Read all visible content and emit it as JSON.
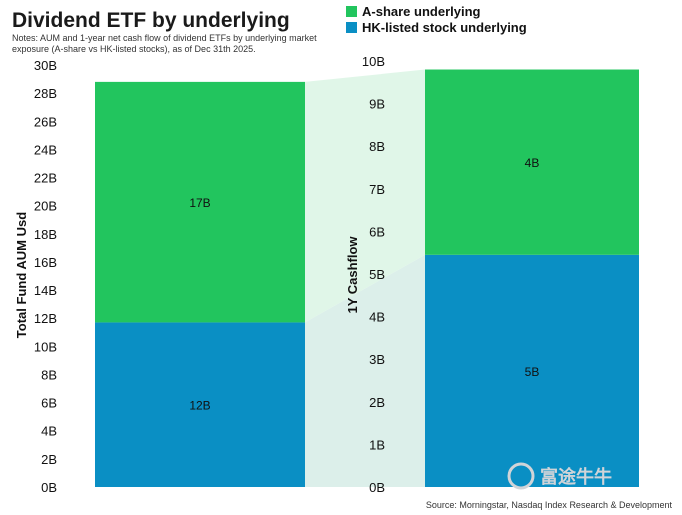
{
  "header": {
    "title": "Dividend ETF by underlying",
    "notes_line1": "Notes: AUM and 1-year net cash flow of dividend ETFs by underlying market",
    "notes_line2": "exposure (A-share vs HK-listed stocks), as of Dec 31th 2025."
  },
  "legend": [
    {
      "label": "A-share underlying",
      "color": "#22c55e"
    },
    {
      "label": "HK-listed stock underlying",
      "color": "#0a8fc4"
    }
  ],
  "source": "Source: Morningstar, Nasdaq Index Research & Development",
  "watermark": "富途牛牛",
  "chart_data": [
    {
      "type": "bar",
      "stacked": true,
      "ylabel": "Total Fund AUM Usd",
      "ylim": [
        0,
        30
      ],
      "yticks": [
        "0B",
        "2B",
        "4B",
        "6B",
        "8B",
        "10B",
        "12B",
        "14B",
        "16B",
        "18B",
        "20B",
        "22B",
        "24B",
        "26B",
        "28B",
        "30B"
      ],
      "series": [
        {
          "name": "HK-listed stock underlying",
          "values": [
            11.7
          ],
          "label": "12B",
          "color": "#0a8fc4"
        },
        {
          "name": "A-share underlying",
          "values": [
            17.1
          ],
          "label": "17B",
          "color": "#22c55e"
        }
      ]
    },
    {
      "type": "bar",
      "stacked": true,
      "ylabel": "1Y Cashflow",
      "ylim": [
        0,
        10
      ],
      "yticks": [
        "0B",
        "1B",
        "2B",
        "3B",
        "4B",
        "5B",
        "6B",
        "7B",
        "8B",
        "9B",
        "10B"
      ],
      "series": [
        {
          "name": "HK-listed stock underlying",
          "values": [
            5.45
          ],
          "label": "5B",
          "color": "#0a8fc4"
        },
        {
          "name": "A-share underlying",
          "values": [
            4.35
          ],
          "label": "4B",
          "color": "#22c55e"
        }
      ]
    }
  ]
}
